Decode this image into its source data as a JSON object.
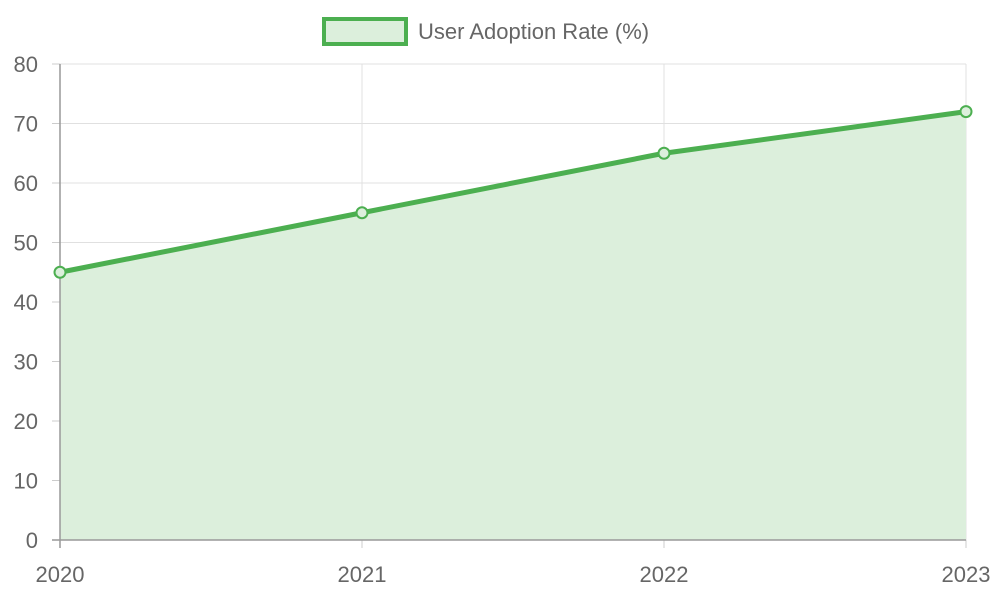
{
  "chart_data": {
    "type": "area",
    "categories": [
      "2020",
      "2021",
      "2022",
      "2023"
    ],
    "series": [
      {
        "name": "User Adoption Rate (%)",
        "values": [
          45,
          55,
          65,
          72
        ],
        "color": "#4caf50",
        "fill": "#dcefdc"
      }
    ],
    "ylim": [
      0,
      80
    ],
    "yticks": [
      0,
      10,
      20,
      30,
      40,
      50,
      60,
      70,
      80
    ],
    "grid": true,
    "legend": "top-center"
  }
}
